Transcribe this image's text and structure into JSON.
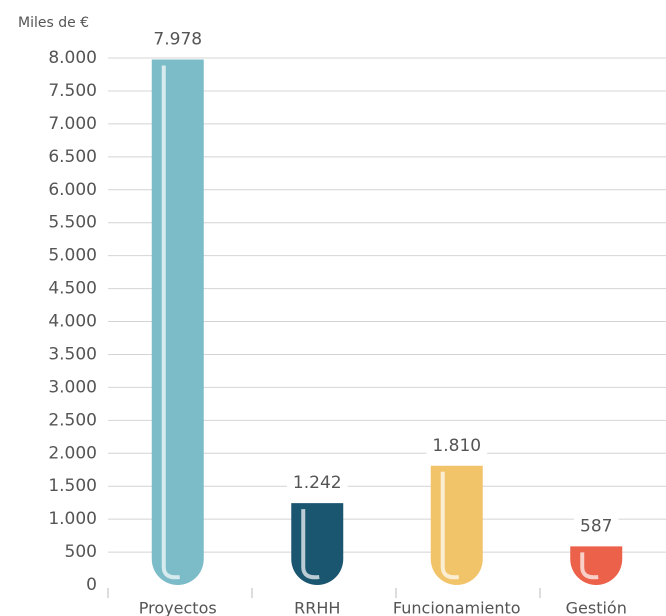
{
  "chart_data": {
    "type": "bar",
    "y_label": "Miles de €",
    "categories": [
      "Proyectos",
      "RRHH",
      "Funcionamiento",
      "Gestión"
    ],
    "values": [
      7978,
      1242,
      1810,
      587
    ],
    "value_labels": [
      "7.978",
      "1.242",
      "1.810",
      "587"
    ],
    "colors": [
      "#7bbcc8",
      "#1b5670",
      "#f2c46a",
      "#ec6149"
    ],
    "ylim": [
      0,
      8000
    ],
    "yticks": [
      0,
      500,
      {
        "value": 1000,
        "label": "1.000"
      },
      {
        "value": 1500,
        "label": "1.500"
      },
      {
        "value": 2000,
        "label": "2.000"
      },
      {
        "value": 2500,
        "label": "2.500"
      },
      {
        "value": 3000,
        "label": "3.000"
      },
      {
        "value": 3500,
        "label": "3.500"
      },
      {
        "value": 4000,
        "label": "4.000"
      },
      {
        "value": 4500,
        "label": "4.500"
      },
      {
        "value": 5000,
        "label": "5.000"
      },
      {
        "value": 5500,
        "label": "5.500"
      },
      {
        "value": 6000,
        "label": "6.000"
      },
      {
        "value": 6500,
        "label": "6.500"
      },
      {
        "value": 7000,
        "label": "7.000"
      },
      {
        "value": 7500,
        "label": "7.500"
      },
      {
        "value": 8000,
        "label": "8.000"
      }
    ],
    "grid": true
  }
}
